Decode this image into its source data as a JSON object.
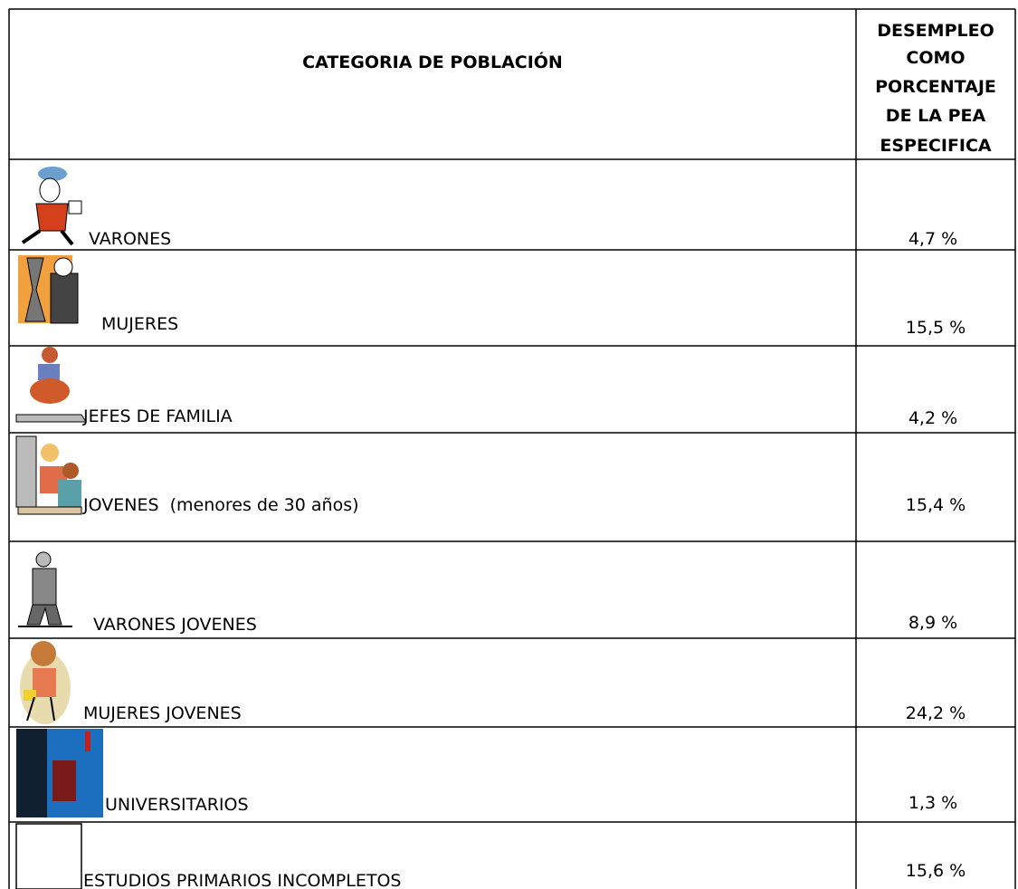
{
  "table": {
    "headers": [
      "CATEGORIA DE POBLACIÓN",
      [
        "DESEMPLEO",
        "COMO",
        "PORCENTAJE",
        "DE LA PEA",
        "ESPECIFICA"
      ]
    ],
    "rows": [
      [
        "VARONES",
        "4,7 %"
      ],
      [
        "MUJERES",
        "15,5 %"
      ],
      [
        "JEFES DE FAMILIA",
        "4,2 %"
      ],
      [
        "JOVENES  (menores de 30 años)",
        "15,4 %"
      ],
      [
        "VARONES JOVENES",
        "8,9 %"
      ],
      [
        "MUJERES JOVENES",
        "24,2 %"
      ],
      [
        "UNIVERSITARIOS",
        "1,3 %"
      ],
      [
        "ESTUDIOS PRIMARIOS INCOMPLETOS",
        "15,6 %"
      ]
    ]
  }
}
